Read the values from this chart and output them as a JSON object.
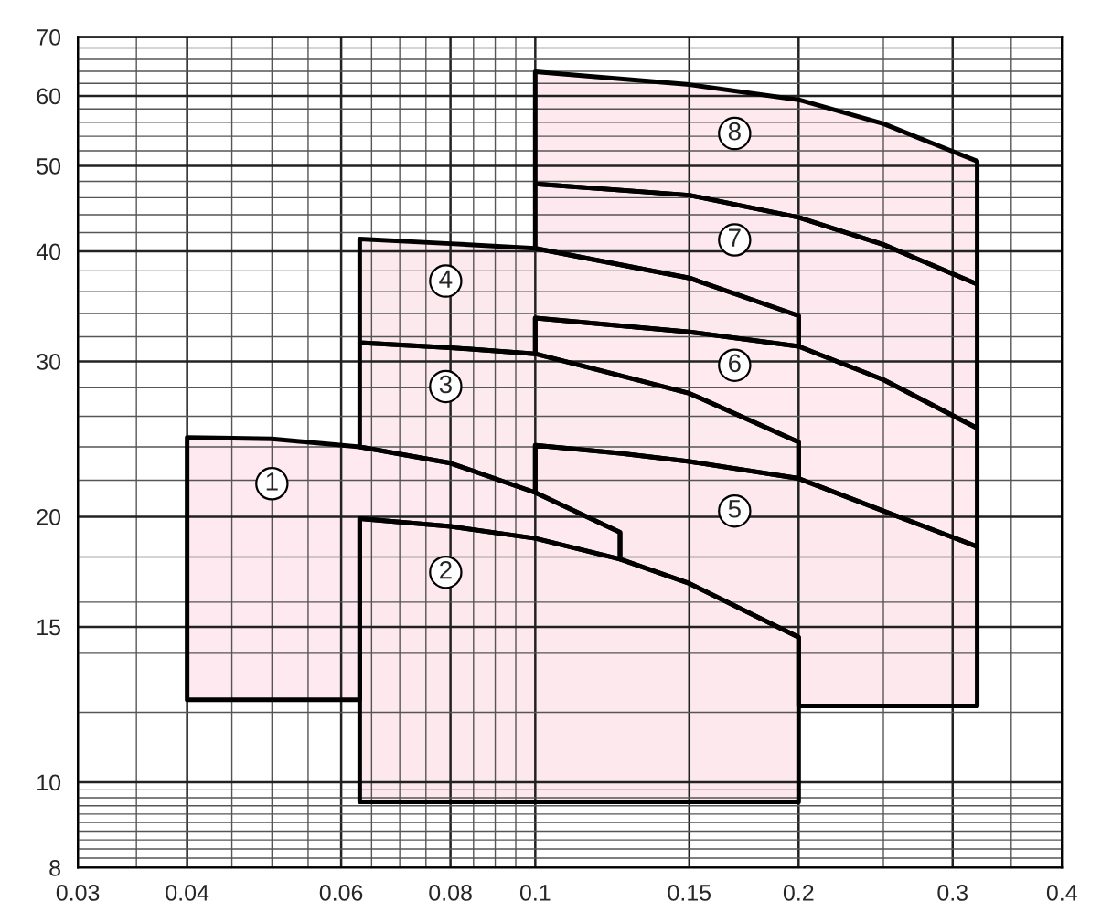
{
  "chart_data": {
    "type": "area",
    "log": "xy",
    "grid": true,
    "xlim": [
      0.03,
      0.4
    ],
    "xticks": [
      0.03,
      0.04,
      0.06,
      0.08,
      0.1,
      0.15,
      0.2,
      0.3,
      0.4
    ],
    "ylim": [
      8,
      70
    ],
    "yticks": [
      8,
      10,
      15,
      20,
      30,
      40,
      50,
      60,
      70
    ],
    "series": [
      {
        "color": "#fde9ef",
        "x": [
          0.04,
          0.05,
          0.063,
          0.08,
          0.1,
          0.125,
          0.125,
          0.1,
          0.08,
          0.063,
          0.063,
          0.04
        ],
        "values": [
          24.6,
          24.5,
          24.0,
          23.0,
          21.3,
          19.2,
          17.9,
          18.9,
          19.5,
          19.9,
          12.4,
          12.4
        ]
      },
      {
        "color": "#fce8ed",
        "x": [
          0.063,
          0.08,
          0.1,
          0.125,
          0.15,
          0.2,
          0.2,
          0.063
        ],
        "values": [
          19.9,
          19.5,
          18.9,
          17.9,
          16.8,
          14.6,
          9.5,
          9.5
        ]
      },
      {
        "color": "#fdeaef",
        "x": [
          0.063,
          0.08,
          0.1,
          0.15,
          0.2,
          0.2,
          0.15,
          0.125,
          0.1,
          0.1,
          0.08,
          0.063
        ],
        "values": [
          31.5,
          31.1,
          30.6,
          27.6,
          24.3,
          22.1,
          23.1,
          23.6,
          24.1,
          21.3,
          23.0,
          24.0
        ]
      },
      {
        "color": "#fce9ee",
        "x": [
          0.063,
          0.08,
          0.1,
          0.15,
          0.2,
          0.2,
          0.15,
          0.1,
          0.1,
          0.08,
          0.063
        ],
        "values": [
          41.3,
          40.8,
          40.3,
          37.3,
          33.8,
          31.2,
          32.4,
          33.6,
          30.6,
          31.1,
          31.5
        ]
      },
      {
        "color": "#fde8ed",
        "x": [
          0.1,
          0.125,
          0.15,
          0.2,
          0.25,
          0.32,
          0.32,
          0.2,
          0.2,
          0.15,
          0.125,
          0.125,
          0.1
        ],
        "values": [
          24.1,
          23.6,
          23.1,
          22.1,
          20.3,
          18.5,
          12.2,
          12.2,
          14.6,
          16.8,
          17.9,
          19.2,
          21.3
        ]
      },
      {
        "color": "#feeaef",
        "x": [
          0.1,
          0.15,
          0.2,
          0.25,
          0.32,
          0.32,
          0.25,
          0.2,
          0.2,
          0.15,
          0.1
        ],
        "values": [
          33.6,
          32.4,
          31.2,
          28.6,
          25.2,
          18.5,
          20.3,
          22.1,
          24.3,
          27.6,
          30.6
        ]
      },
      {
        "color": "#fce8ee",
        "x": [
          0.1,
          0.15,
          0.2,
          0.25,
          0.32,
          0.32,
          0.25,
          0.2,
          0.2,
          0.15,
          0.1
        ],
        "values": [
          47.7,
          46.3,
          43.7,
          40.7,
          36.7,
          25.2,
          28.6,
          31.2,
          33.8,
          37.3,
          40.3
        ]
      },
      {
        "color": "#fde9ee",
        "x": [
          0.1,
          0.15,
          0.2,
          0.25,
          0.32,
          0.32,
          0.25,
          0.2,
          0.15,
          0.1
        ],
        "values": [
          63.9,
          61.8,
          59.4,
          55.8,
          50.6,
          36.7,
          40.7,
          43.7,
          46.3,
          47.7
        ]
      }
    ],
    "annotations": [
      {
        "text": "1",
        "x": 0.05,
        "y": 21.8
      },
      {
        "text": "2",
        "x": 0.079,
        "y": 17.3
      },
      {
        "text": "3",
        "x": 0.079,
        "y": 28.1
      },
      {
        "text": "4",
        "x": 0.079,
        "y": 37.0
      },
      {
        "text": "5",
        "x": 0.169,
        "y": 20.3
      },
      {
        "text": "6",
        "x": 0.169,
        "y": 29.7
      },
      {
        "text": "7",
        "x": 0.169,
        "y": 41.2
      },
      {
        "text": "8",
        "x": 0.169,
        "y": 54.4
      }
    ]
  }
}
